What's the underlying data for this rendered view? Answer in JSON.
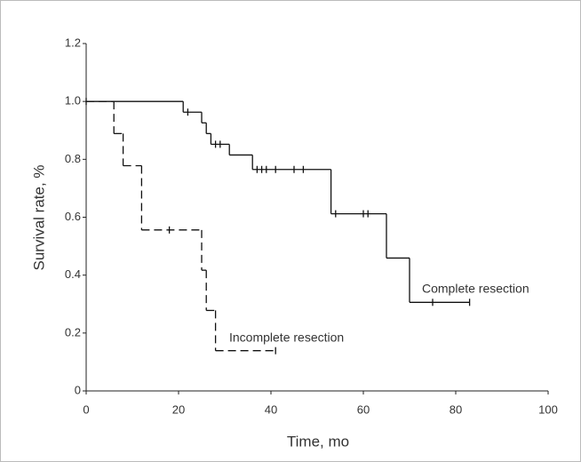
{
  "chart_data": {
    "type": "step",
    "xlabel": "Time, mo",
    "ylabel": "Survival rate, %",
    "xlim": [
      0,
      100
    ],
    "xticks": [
      0,
      20,
      40,
      60,
      80,
      100
    ],
    "ylim": [
      0,
      1.2
    ],
    "yticks": [
      0,
      0.2,
      0.4,
      0.6,
      0.8,
      {
        "value": 1,
        "label": "1.0"
      },
      1.2
    ],
    "series": [
      {
        "name": "Complete resection",
        "color": "#111111",
        "line_style": "solid",
        "x": [
          0,
          21,
          25,
          26,
          27,
          31,
          36,
          53,
          65,
          70,
          83
        ],
        "values": [
          1,
          0.963,
          0.926,
          0.889,
          0.852,
          0.815,
          0.765,
          0.612,
          0.459,
          0.306,
          0.306
        ],
        "censored": {
          "x": [
            0,
            22,
            28,
            29,
            37,
            38,
            39,
            41,
            45,
            47,
            54,
            60,
            61,
            75,
            83
          ],
          "values": [
            1,
            0.963,
            0.852,
            0.852,
            0.765,
            0.765,
            0.765,
            0.765,
            0.765,
            0.765,
            0.612,
            0.612,
            0.612,
            0.306,
            0.306
          ]
        }
      },
      {
        "name": "Incomplete resection",
        "color": "#111111",
        "line_style": "dashed",
        "x": [
          0,
          6,
          8,
          12,
          25,
          26,
          28,
          41
        ],
        "values": [
          1,
          0.889,
          0.778,
          0.556,
          0.417,
          0.278,
          0.139,
          0.139
        ],
        "censored": {
          "x": [
            18,
            41
          ],
          "values": [
            0.556,
            0.139
          ]
        }
      }
    ]
  }
}
